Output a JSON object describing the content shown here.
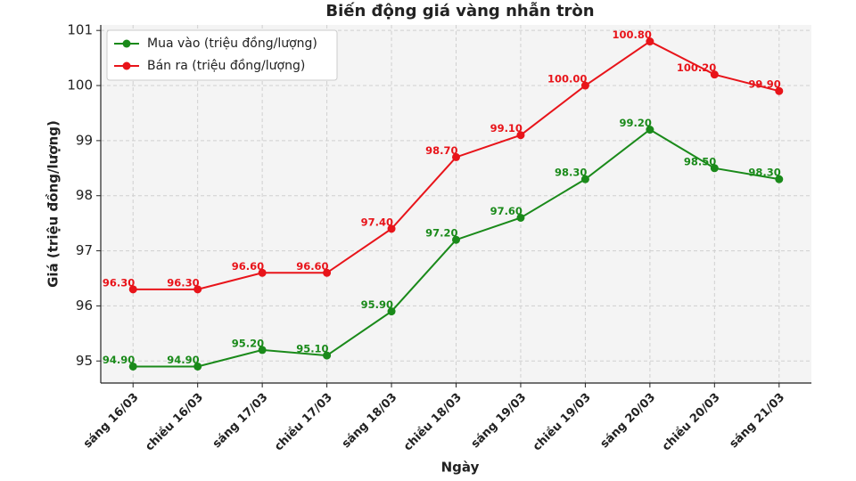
{
  "chart_data": {
    "type": "line",
    "title": "Biến động giá vàng nhẫn tròn",
    "x_label": "Ngày",
    "y_label": "Giá (triệu đồng/lượng)",
    "categories": [
      "sáng 16/03",
      "chiều 16/03",
      "sáng 17/03",
      "chiều 17/03",
      "sáng 18/03",
      "chiều 18/03",
      "sáng 19/03",
      "chiều 19/03",
      "sáng 20/03",
      "chiều 20/03",
      "sáng 21/03"
    ],
    "series": [
      {
        "name": "Mua vào (triệu đồng/lượng)",
        "color": "#1a8a1a",
        "values": [
          94.9,
          94.9,
          95.2,
          95.1,
          95.9,
          97.2,
          97.6,
          98.3,
          99.2,
          98.5,
          98.3
        ],
        "value_labels": [
          "94.90",
          "94.90",
          "95.20",
          "95.10",
          "95.90",
          "97.20",
          "97.60",
          "98.30",
          "99.20",
          "98.50",
          "98.30"
        ]
      },
      {
        "name": "Bán ra (triệu đồng/lượng)",
        "color": "#e8141a",
        "values": [
          96.3,
          96.3,
          96.6,
          96.6,
          97.4,
          98.7,
          99.1,
          100.0,
          100.8,
          100.2,
          99.9
        ],
        "value_labels": [
          "96.30",
          "96.30",
          "96.60",
          "96.60",
          "97.40",
          "98.70",
          "99.10",
          "100.00",
          "100.80",
          "100.20",
          "99.90"
        ]
      }
    ],
    "ylim": [
      94.6,
      101.1
    ],
    "yticks": [
      95,
      96,
      97,
      98,
      99,
      100,
      101
    ],
    "grid": true,
    "legend": "upper-left"
  }
}
